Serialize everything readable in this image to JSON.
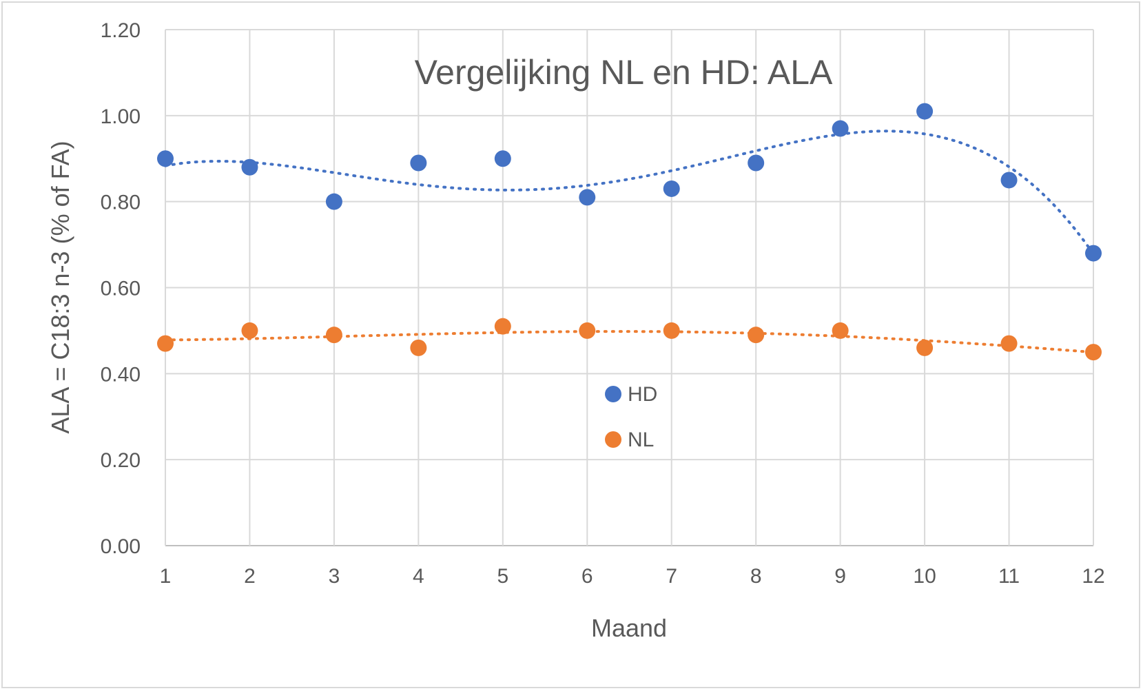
{
  "chart_data": {
    "type": "scatter",
    "title": "Vergelijking NL en HD: ALA",
    "xlabel": "Maand",
    "ylabel": "ALA = C18:3 n-3 (% of FA)",
    "x": [
      1,
      2,
      3,
      4,
      5,
      6,
      7,
      8,
      9,
      10,
      11,
      12
    ],
    "xlim": [
      1,
      12
    ],
    "ylim": [
      0,
      1.2
    ],
    "y_ticks": [
      "0.00",
      "0.20",
      "0.40",
      "0.60",
      "0.80",
      "1.00",
      "1.20"
    ],
    "x_ticks": [
      "1",
      "2",
      "3",
      "4",
      "5",
      "6",
      "7",
      "8",
      "9",
      "10",
      "11",
      "12"
    ],
    "grid": true,
    "legend_position": "center",
    "series": [
      {
        "name": "HD",
        "color": "#4472C4",
        "values": [
          0.9,
          0.88,
          0.8,
          0.89,
          0.9,
          0.81,
          0.83,
          0.89,
          0.97,
          1.01,
          0.85,
          0.68
        ],
        "trendline": "dotted-polynomial"
      },
      {
        "name": "NL",
        "color": "#ED7D31",
        "values": [
          0.47,
          0.5,
          0.49,
          0.46,
          0.51,
          0.5,
          0.5,
          0.49,
          0.5,
          0.46,
          0.47,
          0.45
        ],
        "trendline": "dotted-polynomial"
      }
    ]
  }
}
